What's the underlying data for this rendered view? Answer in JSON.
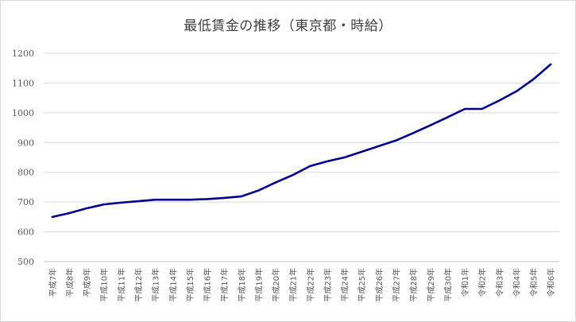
{
  "chart_data": {
    "type": "line",
    "title": "最低賃金の推移（東京都・時給）",
    "xlabel": "",
    "ylabel": "",
    "ylim": [
      500,
      1200
    ],
    "yticks": [
      500,
      600,
      700,
      800,
      900,
      1000,
      1100,
      1200
    ],
    "grid": true,
    "legend": "none",
    "categories": [
      "平成7年",
      "平成8年",
      "平成9年",
      "平成10年",
      "平成11年",
      "平成12年",
      "平成13年",
      "平成14年",
      "平成15年",
      "平成16年",
      "平成17年",
      "平成18年",
      "平成19年",
      "平成20年",
      "平成21年",
      "平成22年",
      "平成23年",
      "平成24年",
      "平成25年",
      "平成26年",
      "平成27年",
      "平成28年",
      "平成29年",
      "平成30年",
      "令和1年",
      "令和2年",
      "令和3年",
      "令和4年",
      "令和5年",
      "令和6年"
    ],
    "series": [
      {
        "color": "#00008b",
        "values": [
          650,
          663,
          679,
          692,
          698,
          703,
          708,
          708,
          708,
          710,
          714,
          719,
          739,
          766,
          791,
          821,
          837,
          850,
          869,
          888,
          907,
          932,
          958,
          985,
          1013,
          1013,
          1041,
          1072,
          1113,
          1163
        ]
      }
    ]
  }
}
